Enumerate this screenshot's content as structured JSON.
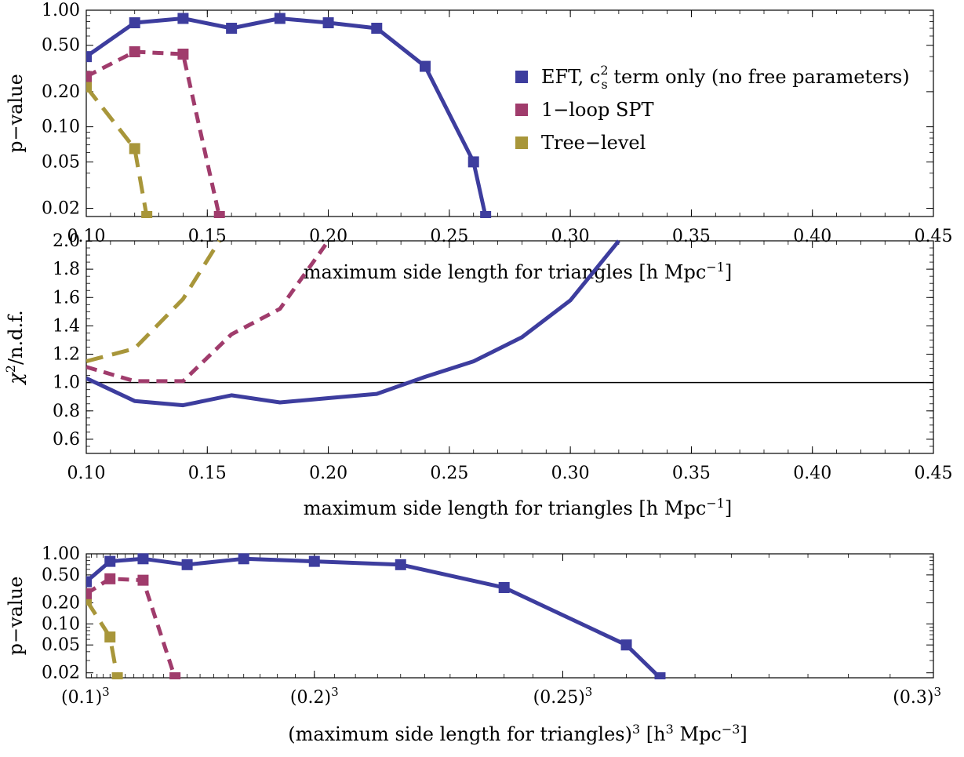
{
  "colors": {
    "eft": "#3d3d9e",
    "spt": "#a03c6c",
    "tree": "#a8963a",
    "axis": "#000000"
  },
  "chart_data": [
    {
      "type": "line",
      "title": "",
      "xlabel": "maximum side length for triangles [h Mpc",
      "xlabel_sup": "−1",
      "xlabel_tail": "]",
      "ylabel": "p−value",
      "xlim": [
        0.1,
        0.45
      ],
      "ylim": [
        0.017,
        1.0
      ],
      "yscale": "log",
      "xticks": [
        0.1,
        0.15,
        0.2,
        0.25,
        0.3,
        0.35,
        0.4,
        0.45
      ],
      "xtick_labels": [
        "0.10",
        "0.15",
        "0.20",
        "0.25",
        "0.30",
        "0.35",
        "0.40",
        "0.45"
      ],
      "yticks": [
        1.0,
        0.5,
        0.2,
        0.1,
        0.05,
        0.02
      ],
      "ytick_labels": [
        "1.00",
        "0.50",
        "0.20",
        "0.10",
        "0.05",
        "0.02"
      ],
      "legend": {
        "position": "right",
        "entries": [
          {
            "text": "EFT, c",
            "sup": "2",
            "sub": "s",
            "tail": " term only (no free parameters)"
          },
          {
            "text": "1−loop SPT"
          },
          {
            "text": "Tree−level"
          }
        ]
      },
      "series": [
        {
          "color_key": "eft",
          "dash": "solid",
          "markers": true,
          "x": [
            0.1,
            0.12,
            0.14,
            0.16,
            0.18,
            0.2,
            0.22,
            0.24,
            0.26,
            0.265
          ],
          "y": [
            0.4,
            0.78,
            0.85,
            0.7,
            0.85,
            0.78,
            0.7,
            0.33,
            0.05,
            0.017
          ]
        },
        {
          "color_key": "spt",
          "dash": "dashed",
          "markers": true,
          "x": [
            0.1,
            0.12,
            0.14,
            0.155
          ],
          "y": [
            0.27,
            0.44,
            0.42,
            0.017
          ]
        },
        {
          "color_key": "tree",
          "dash": "longdash",
          "markers": true,
          "x": [
            0.1,
            0.12,
            0.125
          ],
          "y": [
            0.22,
            0.065,
            0.017
          ]
        }
      ]
    },
    {
      "type": "line",
      "title": "",
      "xlabel": "maximum side length for triangles [h Mpc",
      "xlabel_sup": "−1",
      "xlabel_tail": "]",
      "ylabel": "χ",
      "ylabel_sup": "2",
      "ylabel_tail": "/n.d.f.",
      "xlim": [
        0.1,
        0.45
      ],
      "ylim": [
        0.5,
        2.0
      ],
      "xticks": [
        0.1,
        0.15,
        0.2,
        0.25,
        0.3,
        0.35,
        0.4,
        0.45
      ],
      "xtick_labels": [
        "0.10",
        "0.15",
        "0.20",
        "0.25",
        "0.30",
        "0.35",
        "0.40",
        "0.45"
      ],
      "yticks": [
        0.6,
        0.8,
        1.0,
        1.2,
        1.4,
        1.6,
        1.8,
        2.0
      ],
      "ytick_labels": [
        "0.6",
        "0.8",
        "1.0",
        "1.2",
        "1.4",
        "1.6",
        "1.8",
        "2.0"
      ],
      "reference_line": 1.0,
      "series": [
        {
          "color_key": "eft",
          "dash": "solid",
          "markers": false,
          "x": [
            0.1,
            0.12,
            0.14,
            0.16,
            0.18,
            0.2,
            0.22,
            0.24,
            0.26,
            0.28,
            0.3,
            0.32
          ],
          "y": [
            1.03,
            0.87,
            0.84,
            0.91,
            0.86,
            0.89,
            0.92,
            1.04,
            1.15,
            1.32,
            1.58,
            2.0
          ]
        },
        {
          "color_key": "spt",
          "dash": "dashed",
          "markers": false,
          "x": [
            0.1,
            0.12,
            0.14,
            0.16,
            0.18,
            0.2
          ],
          "y": [
            1.11,
            1.01,
            1.01,
            1.34,
            1.52,
            2.0
          ]
        },
        {
          "color_key": "tree",
          "dash": "longdash",
          "markers": false,
          "x": [
            0.1,
            0.12,
            0.14,
            0.155
          ],
          "y": [
            1.15,
            1.24,
            1.59,
            2.0
          ]
        }
      ]
    },
    {
      "type": "line",
      "title": "",
      "xlabel": "(maximum side length for triangles)",
      "xlabel_sup": "3",
      "xlabel_mid": " [h",
      "xlabel_sup2": "3",
      "xlabel_mid2": " Mpc",
      "xlabel_sup3": "−3",
      "xlabel_tail": "]",
      "ylabel": "p−value",
      "xscale": "cubic",
      "xlim": [
        0.1,
        0.3
      ],
      "ylim": [
        0.017,
        1.0
      ],
      "yscale": "log",
      "xticks": [
        0.1,
        0.2,
        0.25,
        0.3
      ],
      "xtick_labels": [
        "(0.1)",
        "(0.2)",
        "(0.25)",
        "(0.3)"
      ],
      "xtick_sup": "3",
      "yticks": [
        1.0,
        0.5,
        0.2,
        0.1,
        0.05,
        0.02
      ],
      "ytick_labels": [
        "1.00",
        "0.50",
        "0.20",
        "0.10",
        "0.05",
        "0.02"
      ],
      "series": [
        {
          "color_key": "eft",
          "dash": "solid",
          "markers": true,
          "x": [
            0.1,
            0.12,
            0.14,
            0.16,
            0.18,
            0.2,
            0.22,
            0.24,
            0.26,
            0.265
          ],
          "y": [
            0.4,
            0.78,
            0.85,
            0.7,
            0.85,
            0.78,
            0.7,
            0.33,
            0.05,
            0.017
          ]
        },
        {
          "color_key": "spt",
          "dash": "dashed",
          "markers": true,
          "x": [
            0.1,
            0.12,
            0.14,
            0.155
          ],
          "y": [
            0.27,
            0.44,
            0.42,
            0.017
          ]
        },
        {
          "color_key": "tree",
          "dash": "longdash",
          "markers": true,
          "x": [
            0.1,
            0.12,
            0.125
          ],
          "y": [
            0.22,
            0.065,
            0.017
          ]
        }
      ]
    }
  ]
}
